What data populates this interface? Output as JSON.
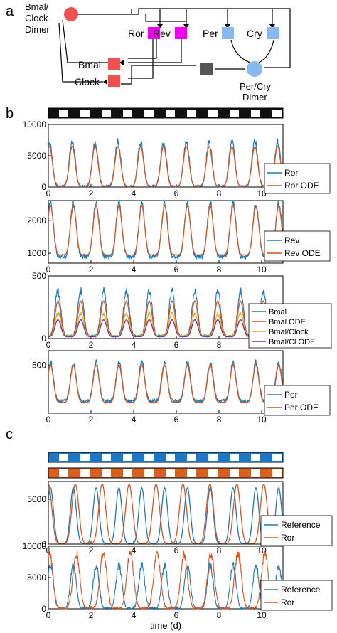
{
  "panel_labels": {
    "a": "a",
    "b": "b",
    "c": "c"
  },
  "diagram": {
    "nodes": [
      {
        "id": "bmal_clock_dimer",
        "label_lines": [
          "Bmal/",
          "Clock",
          "Dimer"
        ],
        "shape": "circle",
        "color": "#f05050"
      },
      {
        "id": "ror",
        "label": "Ror",
        "shape": "square",
        "color": "#ee00ee"
      },
      {
        "id": "rev",
        "label": "Rev",
        "shape": "square",
        "color": "#ee00ee"
      },
      {
        "id": "per",
        "label": "Per",
        "shape": "square",
        "color": "#88b8ee"
      },
      {
        "id": "cry",
        "label": "Cry",
        "shape": "square",
        "color": "#88b8ee"
      },
      {
        "id": "bmal",
        "label": "Bmal",
        "shape": "square",
        "color": "#f05050"
      },
      {
        "id": "clock",
        "label": "Clock",
        "shape": "square",
        "color": "#f05050"
      },
      {
        "id": "inhibitor",
        "label": "",
        "shape": "square",
        "color": "#555555"
      },
      {
        "id": "per_cry_dimer",
        "label_lines": [
          "Per/Cry",
          "Dimer"
        ],
        "shape": "circle",
        "color": "#88b8ee"
      }
    ]
  },
  "light_bars": [
    {
      "id": "b",
      "periods": 11,
      "on": "#ffffff",
      "off": "#111111"
    },
    {
      "id": "c1",
      "periods": 11,
      "on": "#ffffff",
      "off": "#1f77c4"
    },
    {
      "id": "c2",
      "periods": 11,
      "on": "#ffffff",
      "off": "#d95f1e"
    }
  ],
  "chart_data": [
    {
      "type": "line",
      "id": "ror",
      "xlim": [
        0,
        11
      ],
      "ylim": [
        0,
        10000
      ],
      "xticks": [
        "0",
        "2",
        "4",
        "6",
        "8",
        "10"
      ],
      "yticks": [
        "0",
        "5000",
        "10000"
      ],
      "period_d": 1.07,
      "first_peak_d": 0.05,
      "series": [
        {
          "name": "Ror",
          "color": "#1f77b4",
          "peak": 7200,
          "trough": 150,
          "noisy": true
        },
        {
          "name": "Ror ODE",
          "color": "#d9541e",
          "peak": 6500,
          "trough": 100,
          "noisy": false
        }
      ]
    },
    {
      "type": "line",
      "id": "rev",
      "xlim": [
        0,
        11
      ],
      "ylim": [
        700,
        2600
      ],
      "xticks": [
        "0",
        "2",
        "4",
        "6",
        "8",
        "10"
      ],
      "yticks": [
        "1000",
        "2000"
      ],
      "period_d": 1.07,
      "first_peak_d": 0.1,
      "series": [
        {
          "name": "Rev",
          "color": "#1f77b4",
          "peak": 2500,
          "trough": 900,
          "noisy": true
        },
        {
          "name": "Rev ODE",
          "color": "#d9541e",
          "peak": 2450,
          "trough": 950,
          "noisy": false
        }
      ]
    },
    {
      "type": "line",
      "id": "bmal",
      "xlim": [
        0,
        11
      ],
      "ylim": [
        0,
        500
      ],
      "xticks": [
        "0",
        "2",
        "4",
        "6",
        "8",
        "10"
      ],
      "yticks": [
        "0",
        "500"
      ],
      "period_d": 1.07,
      "first_peak_d": 0.45,
      "series": [
        {
          "name": "Bmal",
          "color": "#1f77b4",
          "peak": 380,
          "trough": 20,
          "noisy": true
        },
        {
          "name": "Bmal ODE",
          "color": "#d9541e",
          "peak": 300,
          "trough": 15,
          "noisy": false
        },
        {
          "name": "Bmal/Clock",
          "color": "#e5ac1b",
          "peak": 200,
          "trough": 20,
          "noisy": true
        },
        {
          "name": "Bmal/Cl ODE",
          "color": "#7e2f8e",
          "peak": 150,
          "trough": 15,
          "noisy": false
        }
      ]
    },
    {
      "type": "line",
      "id": "per",
      "xlim": [
        0,
        11
      ],
      "ylim": [
        100,
        620
      ],
      "xticks": [
        "0",
        "2",
        "4",
        "6",
        "8",
        "10"
      ],
      "yticks": [
        "500"
      ],
      "period_d": 1.07,
      "first_peak_d": 0.1,
      "series": [
        {
          "name": "Per",
          "color": "#1f77b4",
          "peak": 520,
          "trough": 200,
          "noisy": true
        },
        {
          "name": "Per ODE",
          "color": "#d9541e",
          "peak": 500,
          "trough": 190,
          "noisy": false
        }
      ]
    },
    {
      "type": "line",
      "id": "ref1",
      "xlim": [
        0,
        11
      ],
      "ylim": [
        0,
        7000
      ],
      "xticks": [
        "0",
        "2",
        "4",
        "6",
        "8",
        "10"
      ],
      "yticks": [
        "0",
        "5000"
      ],
      "series": [
        {
          "name": "Reference",
          "color": "#1f77b4",
          "period_d": 1.07,
          "first_peak_d": 0.1,
          "peak": 6300,
          "trough": 100,
          "noisy": false
        },
        {
          "name": "Ror",
          "color": "#d9541e",
          "period_d": 1.07,
          "first_peak_d": 0.0,
          "peak": 6700,
          "trough": 80,
          "noisy": false,
          "shifted": true
        }
      ]
    },
    {
      "type": "line",
      "id": "ref2",
      "xlim": [
        0,
        11
      ],
      "ylim": [
        0,
        10000
      ],
      "xticks": [
        "0",
        "2",
        "4",
        "6",
        "8",
        "10"
      ],
      "yticks": [
        "0",
        "5000",
        "10000"
      ],
      "xlabel": "time (d)",
      "series": [
        {
          "name": "Reference",
          "color": "#1f77b4",
          "period_d": 1.07,
          "first_peak_d": 0.1,
          "peak": 7000,
          "trough": 100,
          "noisy": true
        },
        {
          "name": "Ror",
          "color": "#d9541e",
          "period_d": 1.07,
          "first_peak_d": 0.05,
          "peak": 8800,
          "trough": 80,
          "noisy": true,
          "shifted": true
        }
      ]
    }
  ]
}
